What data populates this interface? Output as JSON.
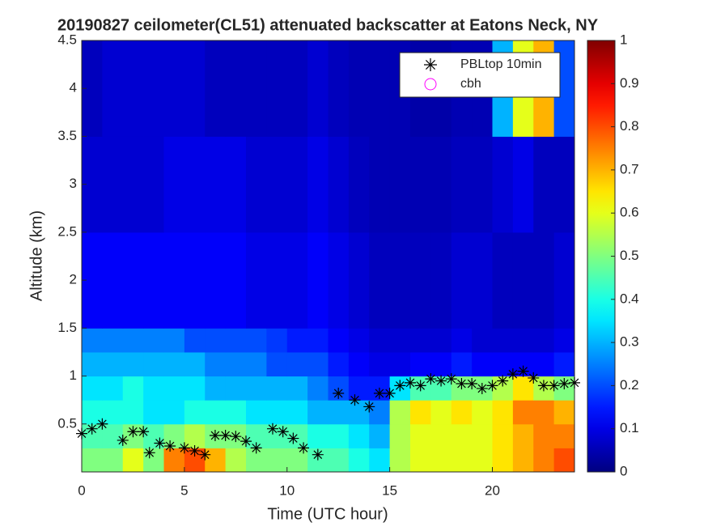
{
  "chart_data": {
    "type": "heatmap",
    "title": "20190827 ceilometer(CL51) attenuated backscatter at Eatons Neck, NY",
    "xlabel": "Time (UTC hour)",
    "ylabel": "Altitude (km)",
    "colormap": "jet",
    "xlim": [
      0,
      24
    ],
    "xticks": [
      0,
      5,
      10,
      15,
      20
    ],
    "ylim": [
      0,
      4.5
    ],
    "yticks": [
      0.5,
      1,
      1.5,
      2,
      2.5,
      3,
      3.5,
      4,
      4.5
    ],
    "clim": [
      0,
      1
    ],
    "cticks": [
      0,
      0.1,
      0.2,
      0.3,
      0.4,
      0.5,
      0.6,
      0.7,
      0.8,
      0.9,
      1
    ],
    "x_edges": [
      0,
      1,
      2,
      3,
      4,
      5,
      6,
      7,
      8,
      9,
      10,
      11,
      12,
      13,
      14,
      15,
      16,
      17,
      18,
      19,
      20,
      21,
      22,
      23,
      24
    ],
    "y_edges": [
      0,
      0.25,
      0.5,
      0.75,
      1,
      1.25,
      1.5,
      2.5,
      3.5,
      4.5
    ],
    "z": [
      [
        0.5,
        0.5,
        0.6,
        0.5,
        0.75,
        0.8,
        0.7,
        0.55,
        0.5,
        0.5,
        0.5,
        0.45,
        0.45,
        0.4,
        0.35,
        0.55,
        0.6,
        0.6,
        0.6,
        0.6,
        0.65,
        0.7,
        0.75,
        0.8
      ],
      [
        0.45,
        0.45,
        0.5,
        0.45,
        0.5,
        0.55,
        0.5,
        0.5,
        0.45,
        0.45,
        0.45,
        0.4,
        0.4,
        0.35,
        0.3,
        0.55,
        0.6,
        0.6,
        0.6,
        0.6,
        0.65,
        0.7,
        0.75,
        0.75
      ],
      [
        0.4,
        0.4,
        0.4,
        0.35,
        0.35,
        0.4,
        0.4,
        0.4,
        0.35,
        0.35,
        0.35,
        0.3,
        0.3,
        0.3,
        0.25,
        0.55,
        0.65,
        0.6,
        0.65,
        0.6,
        0.65,
        0.75,
        0.75,
        0.7
      ],
      [
        0.35,
        0.35,
        0.4,
        0.35,
        0.35,
        0.35,
        0.3,
        0.3,
        0.3,
        0.3,
        0.3,
        0.25,
        0.2,
        0.15,
        0.15,
        0.35,
        0.45,
        0.45,
        0.5,
        0.5,
        0.55,
        0.65,
        0.55,
        0.5
      ],
      [
        0.3,
        0.3,
        0.3,
        0.3,
        0.3,
        0.3,
        0.25,
        0.25,
        0.25,
        0.2,
        0.2,
        0.2,
        0.15,
        0.12,
        0.1,
        0.1,
        0.12,
        0.12,
        0.15,
        0.12,
        0.12,
        0.12,
        0.12,
        0.15
      ],
      [
        0.25,
        0.25,
        0.25,
        0.25,
        0.25,
        0.2,
        0.2,
        0.2,
        0.2,
        0.18,
        0.15,
        0.15,
        0.12,
        0.1,
        0.08,
        0.08,
        0.08,
        0.08,
        0.1,
        0.08,
        0.08,
        0.08,
        0.08,
        0.1
      ],
      [
        0.12,
        0.12,
        0.12,
        0.12,
        0.12,
        0.12,
        0.12,
        0.12,
        0.1,
        0.1,
        0.1,
        0.12,
        0.1,
        0.08,
        0.06,
        0.06,
        0.06,
        0.06,
        0.08,
        0.08,
        0.06,
        0.06,
        0.06,
        0.08
      ],
      [
        0.08,
        0.08,
        0.08,
        0.08,
        0.1,
        0.1,
        0.1,
        0.1,
        0.08,
        0.08,
        0.08,
        0.1,
        0.08,
        0.06,
        0.05,
        0.05,
        0.05,
        0.05,
        0.06,
        0.06,
        0.08,
        0.1,
        0.06,
        0.06
      ],
      [
        0.06,
        0.08,
        0.08,
        0.08,
        0.08,
        0.08,
        0.06,
        0.06,
        0.06,
        0.06,
        0.06,
        0.08,
        0.06,
        0.05,
        0.05,
        0.05,
        0.04,
        0.04,
        0.05,
        0.05,
        0.3,
        0.6,
        0.7,
        0.2
      ]
    ],
    "series": [
      {
        "name": "PBLtop 10min",
        "color": "#000000",
        "marker": "star",
        "x": [
          0,
          0.5,
          1,
          2,
          2.5,
          3,
          3.3,
          3.8,
          4.3,
          5,
          5.5,
          6,
          6.5,
          7,
          7.5,
          8,
          8.5,
          9.3,
          9.8,
          10.3,
          10.8,
          11.5,
          12.5,
          13.3,
          14,
          14.5,
          15,
          15.5,
          16,
          16.5,
          17,
          17.5,
          18,
          18.5,
          19,
          19.5,
          20,
          20.5,
          21,
          21.5,
          22,
          22.5,
          23,
          23.5,
          24
        ],
        "values": [
          0.4,
          0.45,
          0.5,
          0.33,
          0.42,
          0.42,
          0.2,
          0.3,
          0.27,
          0.25,
          0.22,
          0.18,
          0.38,
          0.38,
          0.37,
          0.32,
          0.25,
          0.45,
          0.42,
          0.35,
          0.25,
          0.18,
          0.82,
          0.75,
          0.68,
          0.82,
          0.82,
          0.9,
          0.93,
          0.9,
          0.97,
          0.95,
          0.97,
          0.92,
          0.92,
          0.87,
          0.9,
          0.95,
          1.02,
          1.05,
          0.98,
          0.9,
          0.9,
          0.92,
          0.93
        ]
      },
      {
        "name": "cbh",
        "color": "#ff00ff",
        "marker": "circle",
        "x": [],
        "values": []
      }
    ],
    "legend": "upper right"
  }
}
